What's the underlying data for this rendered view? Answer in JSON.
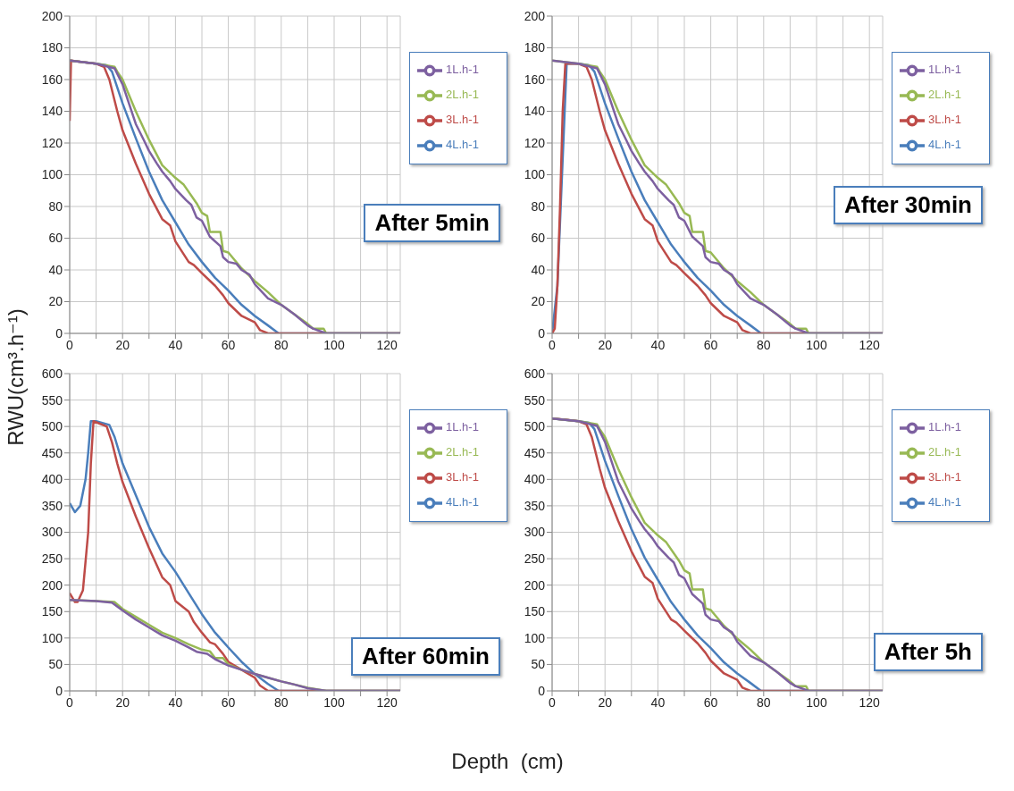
{
  "chart_data": [
    {
      "type": "line",
      "ylabel": "RWU(cm³.h⁻¹)",
      "annotations": [
        "After 5min"
      ],
      "xlim": [
        0,
        125
      ],
      "ylim": [
        0,
        200
      ],
      "xticks": [
        0,
        {
          "value": 10,
          "label": null
        },
        20,
        {
          "value": 30,
          "label": null
        },
        40,
        {
          "value": 50,
          "label": null
        },
        60,
        {
          "value": 70,
          "label": null
        },
        80,
        {
          "value": 90,
          "label": null
        },
        100,
        {
          "value": 110,
          "label": null
        },
        120
      ],
      "yticks": [
        0,
        20,
        40,
        60,
        80,
        100,
        120,
        140,
        160,
        180,
        200
      ],
      "grid": true,
      "legend": "top right",
      "marker": "none",
      "line_style": "solid",
      "series": [
        {
          "name": "4L.h-1",
          "color": "#4a7ebb",
          "x": [
            0,
            10,
            14,
            16,
            20,
            25,
            30,
            35,
            40,
            45,
            50,
            55,
            60,
            65,
            70,
            75,
            79,
            125
          ],
          "values": [
            172,
            170,
            169,
            165,
            145,
            123,
            102,
            84,
            70,
            56,
            45,
            35,
            27,
            18,
            11,
            5,
            0,
            0
          ]
        },
        {
          "name": "3L.h-1",
          "color": "#be4b48",
          "x": [
            0,
            0.5,
            5,
            10,
            13,
            15,
            18,
            20,
            25,
            30,
            35,
            38,
            40,
            45,
            47,
            50,
            55,
            58,
            60,
            65,
            70,
            72,
            75,
            125
          ],
          "values": [
            134,
            172,
            171,
            170,
            168,
            160,
            140,
            128,
            107,
            88,
            72,
            68,
            58,
            45,
            43,
            38,
            30,
            24,
            19,
            11,
            7,
            2,
            0,
            0
          ]
        },
        {
          "name": "2L.h-1",
          "color": "#98b954",
          "x": [
            0,
            10,
            17,
            18,
            20,
            25,
            30,
            35,
            40,
            43,
            48,
            50,
            52,
            53,
            57,
            58,
            60,
            65,
            70,
            75,
            80,
            85,
            90,
            92,
            96,
            97,
            125
          ],
          "values": [
            172,
            170,
            168,
            165,
            160,
            140,
            122,
            106,
            98,
            94,
            82,
            76,
            74,
            64,
            64,
            52,
            51,
            41,
            33,
            26,
            18,
            12,
            6,
            3,
            3,
            0,
            0
          ]
        },
        {
          "name": "1L.h-1",
          "color": "#7d60a0",
          "x": [
            0,
            10,
            17,
            20,
            25,
            28,
            30,
            33,
            35,
            38,
            40,
            44,
            46,
            48,
            50,
            53,
            57,
            58,
            60,
            63,
            65,
            68,
            70,
            75,
            80,
            85,
            90,
            92,
            97,
            125
          ],
          "values": [
            172,
            170,
            167,
            157,
            132,
            122,
            115,
            107,
            102,
            96,
            91,
            84,
            81,
            73,
            71,
            61,
            55,
            48,
            45,
            44,
            40,
            37,
            31,
            22,
            18,
            12,
            5,
            3,
            0,
            0
          ]
        }
      ]
    },
    {
      "type": "line",
      "annotations": [
        "After 30min"
      ],
      "xlim": [
        0,
        125
      ],
      "ylim": [
        0,
        200
      ],
      "xticks": [
        0,
        {
          "value": 10,
          "label": null
        },
        20,
        {
          "value": 30,
          "label": null
        },
        40,
        {
          "value": 50,
          "label": null
        },
        60,
        {
          "value": 70,
          "label": null
        },
        80,
        {
          "value": 90,
          "label": null
        },
        100,
        {
          "value": 110,
          "label": null
        },
        120
      ],
      "yticks": [
        0,
        20,
        40,
        60,
        80,
        100,
        120,
        140,
        160,
        180,
        200
      ],
      "grid": true,
      "legend": "top right",
      "marker": "none",
      "line_style": "solid",
      "series": [
        {
          "name": "4L.h-1",
          "color": "#4a7ebb",
          "x": [
            0,
            2,
            5.5,
            10,
            14,
            16,
            20,
            25,
            30,
            35,
            40,
            45,
            50,
            55,
            60,
            65,
            70,
            75,
            79,
            125
          ],
          "values": [
            0,
            30,
            170,
            170,
            169,
            165,
            145,
            123,
            102,
            84,
            70,
            56,
            45,
            35,
            27,
            18,
            11,
            5,
            0,
            0
          ]
        },
        {
          "name": "3L.h-1",
          "color": "#be4b48",
          "x": [
            0,
            1,
            2,
            3,
            4,
            5,
            10,
            13,
            15,
            18,
            20,
            25,
            30,
            35,
            38,
            40,
            45,
            47,
            50,
            55,
            58,
            60,
            65,
            70,
            72,
            75,
            125
          ],
          "values": [
            0,
            3,
            30,
            80,
            140,
            170,
            170,
            168,
            160,
            140,
            128,
            107,
            88,
            72,
            68,
            58,
            45,
            43,
            38,
            30,
            24,
            19,
            11,
            7,
            2,
            0,
            0
          ]
        },
        {
          "name": "2L.h-1",
          "color": "#98b954",
          "x": [
            0,
            10,
            17,
            18,
            20,
            25,
            30,
            35,
            40,
            43,
            48,
            50,
            52,
            53,
            57,
            58,
            60,
            65,
            70,
            75,
            80,
            85,
            90,
            92,
            96,
            97,
            125
          ],
          "values": [
            172,
            170,
            168,
            165,
            160,
            140,
            122,
            106,
            98,
            94,
            82,
            76,
            74,
            64,
            64,
            52,
            51,
            41,
            33,
            26,
            18,
            12,
            6,
            3,
            3,
            0,
            0
          ]
        },
        {
          "name": "1L.h-1",
          "color": "#7d60a0",
          "x": [
            0,
            10,
            17,
            20,
            25,
            28,
            30,
            33,
            35,
            38,
            40,
            44,
            46,
            48,
            50,
            53,
            57,
            58,
            60,
            63,
            65,
            68,
            70,
            75,
            80,
            85,
            90,
            92,
            97,
            125
          ],
          "values": [
            172,
            170,
            167,
            157,
            132,
            122,
            115,
            107,
            102,
            96,
            91,
            84,
            81,
            73,
            71,
            61,
            55,
            48,
            45,
            44,
            40,
            37,
            31,
            22,
            18,
            12,
            5,
            3,
            0,
            0
          ]
        }
      ]
    },
    {
      "type": "line",
      "xlabel": "Depth  (cm)",
      "annotations": [
        "After 60min"
      ],
      "xlim": [
        0,
        125
      ],
      "ylim": [
        0,
        600
      ],
      "xticks": [
        0,
        {
          "value": 10,
          "label": null
        },
        20,
        {
          "value": 30,
          "label": null
        },
        40,
        {
          "value": 50,
          "label": null
        },
        60,
        {
          "value": 70,
          "label": null
        },
        80,
        {
          "value": 90,
          "label": null
        },
        100,
        {
          "value": 110,
          "label": null
        },
        120
      ],
      "yticks": [
        0,
        50,
        100,
        150,
        200,
        250,
        300,
        350,
        400,
        450,
        500,
        550,
        600
      ],
      "grid": true,
      "legend": "top right",
      "marker": "none",
      "line_style": "solid",
      "series": [
        {
          "name": "4L.h-1",
          "color": "#4a7ebb",
          "x": [
            0,
            2,
            4,
            6,
            7,
            8,
            10,
            15,
            17,
            20,
            25,
            30,
            35,
            40,
            45,
            50,
            55,
            60,
            65,
            70,
            75,
            79,
            125
          ],
          "values": [
            355,
            338,
            350,
            400,
            450,
            510,
            510,
            503,
            480,
            430,
            370,
            310,
            260,
            225,
            185,
            145,
            110,
            82,
            55,
            32,
            13,
            0,
            0
          ]
        },
        {
          "name": "3L.h-1",
          "color": "#be4b48",
          "x": [
            0,
            2,
            3,
            5,
            7,
            8,
            9,
            14,
            16,
            18,
            20,
            25,
            30,
            35,
            38,
            40,
            45,
            47,
            50,
            53,
            55,
            58,
            60,
            65,
            70,
            72,
            75,
            125
          ],
          "values": [
            185,
            168,
            168,
            190,
            300,
            430,
            510,
            500,
            470,
            430,
            395,
            330,
            270,
            215,
            200,
            170,
            150,
            130,
            110,
            92,
            88,
            70,
            55,
            40,
            25,
            10,
            0,
            0
          ]
        },
        {
          "name": "2L.h-1",
          "color": "#98b954",
          "x": [
            0,
            10,
            17,
            20,
            25,
            30,
            35,
            40,
            45,
            50,
            53,
            55,
            58,
            60,
            65,
            70,
            75,
            80,
            85,
            90,
            97,
            125
          ],
          "values": [
            172,
            170,
            168,
            155,
            140,
            125,
            110,
            100,
            88,
            78,
            75,
            62,
            62,
            50,
            40,
            32,
            25,
            18,
            12,
            6,
            0,
            0
          ]
        },
        {
          "name": "1L.h-1",
          "color": "#7d60a0",
          "x": [
            0,
            10,
            16,
            20,
            25,
            30,
            35,
            40,
            45,
            48,
            52,
            55,
            60,
            65,
            70,
            75,
            80,
            85,
            90,
            97,
            125
          ],
          "values": [
            172,
            170,
            167,
            152,
            135,
            120,
            105,
            95,
            82,
            74,
            70,
            60,
            48,
            40,
            32,
            25,
            18,
            12,
            5,
            0,
            0
          ]
        }
      ]
    },
    {
      "type": "line",
      "annotations": [
        "After 5h"
      ],
      "xlim": [
        0,
        125
      ],
      "ylim": [
        0,
        600
      ],
      "xticks": [
        0,
        {
          "value": 10,
          "label": null
        },
        20,
        {
          "value": 30,
          "label": null
        },
        40,
        {
          "value": 50,
          "label": null
        },
        60,
        {
          "value": 70,
          "label": null
        },
        80,
        {
          "value": 90,
          "label": null
        },
        100,
        {
          "value": 110,
          "label": null
        },
        120
      ],
      "yticks": [
        0,
        50,
        100,
        150,
        200,
        250,
        300,
        350,
        400,
        450,
        500,
        550,
        600
      ],
      "grid": true,
      "legend": "top right",
      "marker": "none",
      "line_style": "solid",
      "series": [
        {
          "name": "4L.h-1",
          "color": "#4a7ebb",
          "x": [
            0,
            10,
            14,
            16,
            20,
            25,
            30,
            35,
            40,
            45,
            50,
            55,
            60,
            65,
            70,
            75,
            79,
            125
          ],
          "values": [
            515,
            510,
            507,
            495,
            435,
            369,
            306,
            252,
            210,
            168,
            135,
            105,
            81,
            54,
            33,
            15,
            0,
            0
          ]
        },
        {
          "name": "3L.h-1",
          "color": "#be4b48",
          "x": [
            0,
            5,
            10,
            13,
            15,
            18,
            20,
            25,
            30,
            35,
            38,
            40,
            45,
            47,
            50,
            55,
            58,
            60,
            65,
            70,
            72,
            75,
            125
          ],
          "values": [
            515,
            513,
            510,
            504,
            480,
            420,
            384,
            321,
            264,
            216,
            204,
            174,
            135,
            129,
            114,
            90,
            72,
            57,
            33,
            21,
            6,
            0,
            0
          ]
        },
        {
          "name": "2L.h-1",
          "color": "#98b954",
          "x": [
            0,
            10,
            17,
            18,
            20,
            25,
            30,
            35,
            40,
            43,
            48,
            50,
            52,
            53,
            57,
            58,
            60,
            65,
            70,
            75,
            80,
            85,
            90,
            92,
            96,
            97,
            125
          ],
          "values": [
            515,
            510,
            504,
            495,
            480,
            420,
            366,
            318,
            294,
            282,
            246,
            228,
            222,
            192,
            192,
            156,
            153,
            123,
            99,
            78,
            54,
            36,
            18,
            9,
            9,
            0,
            0
          ]
        },
        {
          "name": "1L.h-1",
          "color": "#7d60a0",
          "x": [
            0,
            10,
            17,
            20,
            25,
            28,
            30,
            33,
            35,
            38,
            40,
            44,
            46,
            48,
            50,
            53,
            57,
            58,
            60,
            63,
            65,
            68,
            70,
            75,
            80,
            85,
            90,
            92,
            97,
            125
          ],
          "values": [
            515,
            510,
            501,
            471,
            396,
            366,
            345,
            321,
            306,
            288,
            273,
            252,
            243,
            219,
            213,
            183,
            165,
            144,
            135,
            132,
            120,
            111,
            93,
            66,
            54,
            36,
            15,
            9,
            0,
            0
          ]
        }
      ]
    }
  ]
}
